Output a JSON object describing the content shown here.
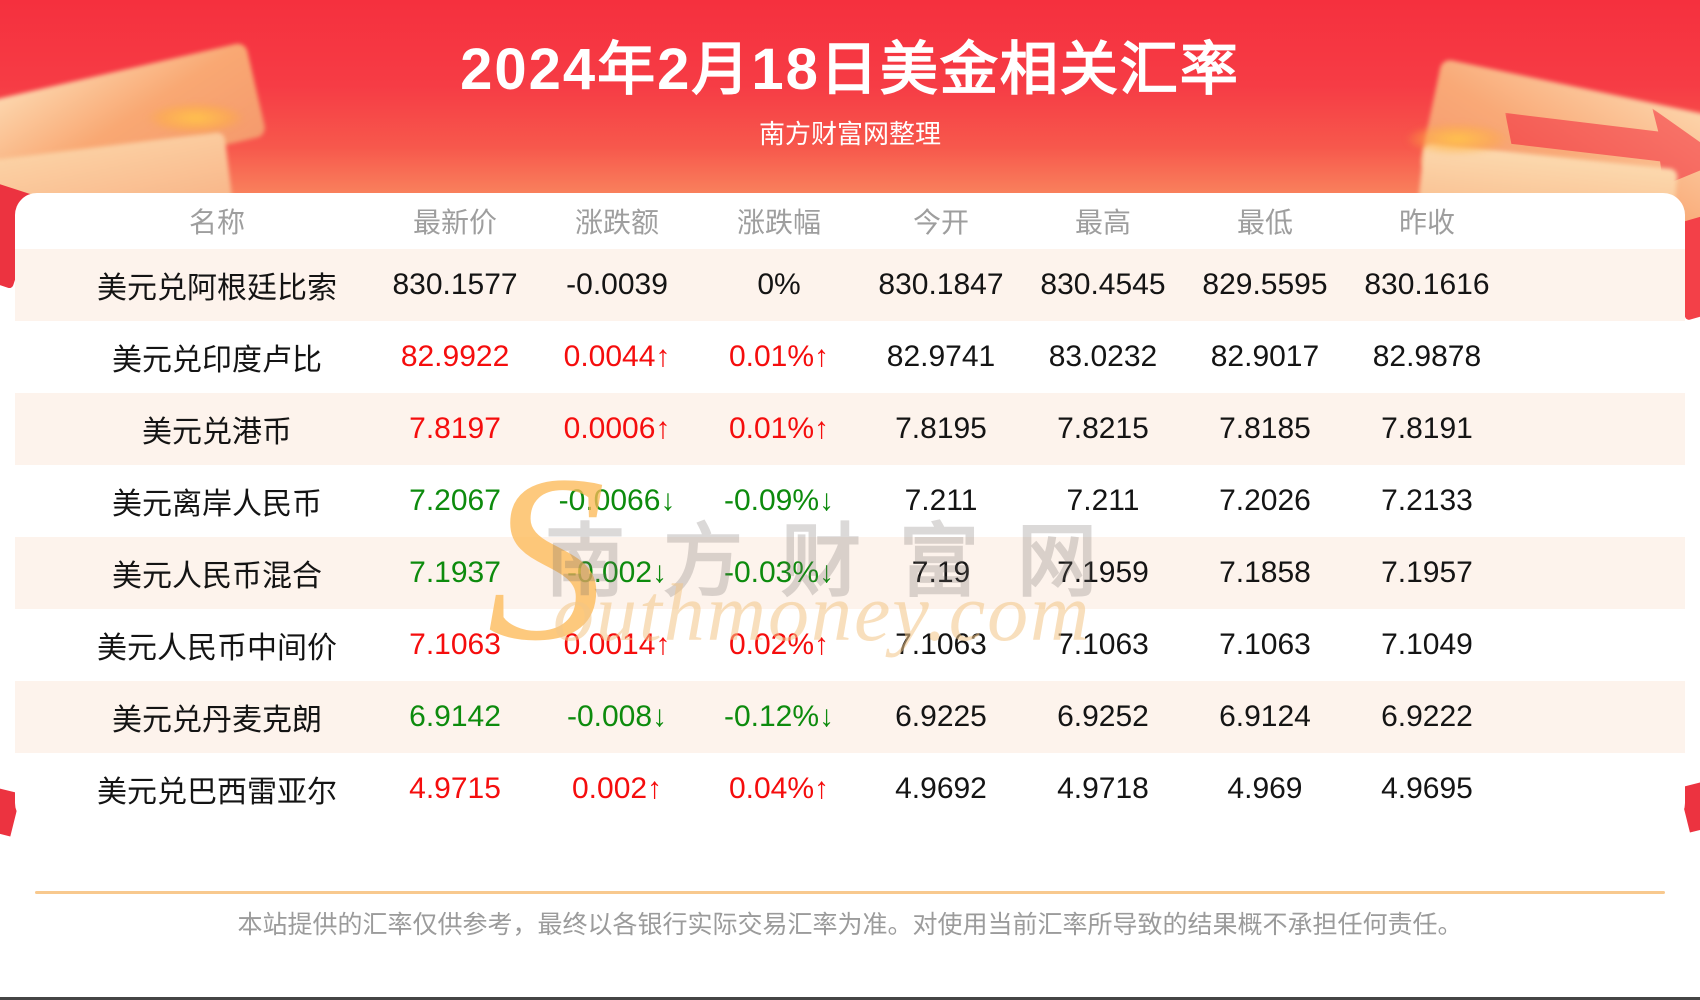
{
  "header": {
    "title": "2024年2月18日美金相关汇率",
    "subtitle": "南方财富网整理"
  },
  "table": {
    "columns": [
      "名称",
      "最新价",
      "涨跌额",
      "涨跌幅",
      "今开",
      "最高",
      "最低",
      "昨收"
    ],
    "rows": [
      {
        "name": "美元兑阿根廷比索",
        "latest": "830.1577",
        "change": "-0.0039",
        "change_pct": "0%",
        "open": "830.1847",
        "high": "830.4545",
        "low": "829.5595",
        "prev_close": "830.1616",
        "trend": "flat"
      },
      {
        "name": "美元兑印度卢比",
        "latest": "82.9922",
        "change": "0.0044↑",
        "change_pct": "0.01%↑",
        "open": "82.9741",
        "high": "83.0232",
        "low": "82.9017",
        "prev_close": "82.9878",
        "trend": "up"
      },
      {
        "name": "美元兑港币",
        "latest": "7.8197",
        "change": "0.0006↑",
        "change_pct": "0.01%↑",
        "open": "7.8195",
        "high": "7.8215",
        "low": "7.8185",
        "prev_close": "7.8191",
        "trend": "up"
      },
      {
        "name": "美元离岸人民币",
        "latest": "7.2067",
        "change": "-0.0066↓",
        "change_pct": "-0.09%↓",
        "open": "7.211",
        "high": "7.211",
        "low": "7.2026",
        "prev_close": "7.2133",
        "trend": "down"
      },
      {
        "name": "美元人民币混合",
        "latest": "7.1937",
        "change": "-0.002↓",
        "change_pct": "-0.03%↓",
        "open": "7.19",
        "high": "7.1959",
        "low": "7.1858",
        "prev_close": "7.1957",
        "trend": "down"
      },
      {
        "name": "美元人民币中间价",
        "latest": "7.1063",
        "change": "0.0014↑",
        "change_pct": "0.02%↑",
        "open": "7.1063",
        "high": "7.1063",
        "low": "7.1063",
        "prev_close": "7.1049",
        "trend": "up"
      },
      {
        "name": "美元兑丹麦克朗",
        "latest": "6.9142",
        "change": "-0.008↓",
        "change_pct": "-0.12%↓",
        "open": "6.9225",
        "high": "6.9252",
        "low": "6.9124",
        "prev_close": "6.9222",
        "trend": "down"
      },
      {
        "name": "美元兑巴西雷亚尔",
        "latest": "4.9715",
        "change": "0.002↑",
        "change_pct": "0.04%↑",
        "open": "4.9692",
        "high": "4.9718",
        "low": "4.969",
        "prev_close": "4.9695",
        "trend": "up"
      }
    ]
  },
  "watermark": {
    "cn": "南方财富网",
    "en_initial": "S",
    "en_rest": "outhmoney.com"
  },
  "footer": {
    "disclaimer": "本站提供的汇率仅供参考，最终以各银行实际交易汇率为准。对使用当前汇率所导致的结果概不承担任何责任。"
  },
  "colors": {
    "banner_red": "#f5303e",
    "up_red": "#f50d0d",
    "down_green": "#0d8b0d",
    "row_alt_bg": "#fdf3ec",
    "divider_tan": "#f8c98e",
    "header_gray": "#9e9e9e"
  },
  "chart_data": {
    "type": "table",
    "title": "2024年2月18日美金相关汇率",
    "columns": [
      "名称",
      "最新价",
      "涨跌额",
      "涨跌幅",
      "今开",
      "最高",
      "最低",
      "昨收"
    ],
    "rows": [
      [
        "美元兑阿根廷比索",
        "830.1577",
        "-0.0039",
        "0%",
        "830.1847",
        "830.4545",
        "829.5595",
        "830.1616"
      ],
      [
        "美元兑印度卢比",
        "82.9922",
        "0.0044↑",
        "0.01%↑",
        "82.9741",
        "83.0232",
        "82.9017",
        "82.9878"
      ],
      [
        "美元兑港币",
        "7.8197",
        "0.0006↑",
        "0.01%↑",
        "7.8195",
        "7.8215",
        "7.8185",
        "7.8191"
      ],
      [
        "美元离岸人民币",
        "7.2067",
        "-0.0066↓",
        "-0.09%↓",
        "7.211",
        "7.211",
        "7.2026",
        "7.2133"
      ],
      [
        "美元人民币混合",
        "7.1937",
        "-0.002↓",
        "-0.03%↓",
        "7.19",
        "7.1959",
        "7.1858",
        "7.1957"
      ],
      [
        "美元人民币中间价",
        "7.1063",
        "0.0014↑",
        "0.02%↑",
        "7.1063",
        "7.1063",
        "7.1063",
        "7.1049"
      ],
      [
        "美元兑丹麦克朗",
        "6.9142",
        "-0.008↓",
        "-0.12%↓",
        "6.9225",
        "6.9252",
        "6.9124",
        "6.9222"
      ],
      [
        "美元兑巴西雷亚尔",
        "4.9715",
        "0.002↑",
        "0.04%↑",
        "4.9692",
        "4.9718",
        "4.969",
        "4.9695"
      ]
    ]
  }
}
